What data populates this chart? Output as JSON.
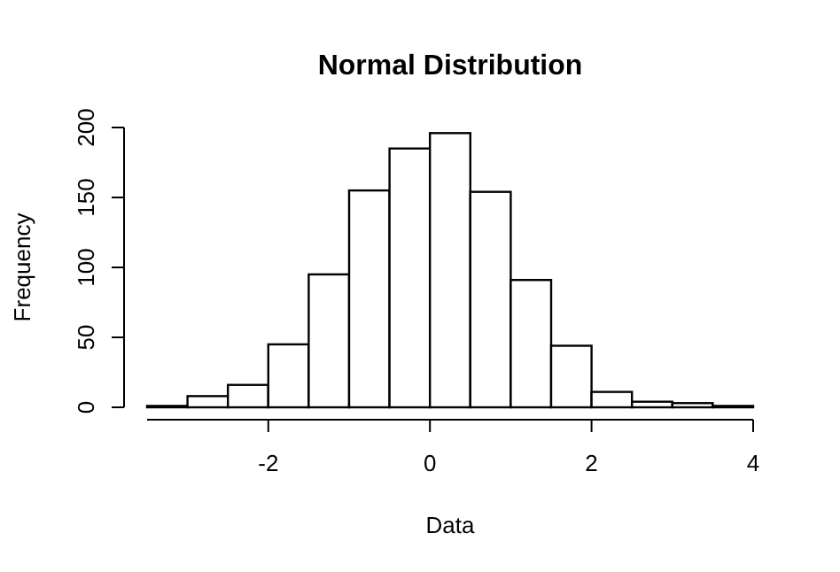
{
  "chart_data": {
    "type": "histogram",
    "title": "Normal Distribution",
    "xlabel": "Data",
    "ylabel": "Frequency",
    "bins": [
      -3.5,
      -3,
      -2.5,
      -2,
      -1.5,
      -1,
      -0.5,
      0,
      0.5,
      1,
      1.5,
      2,
      2.5,
      3,
      3.5,
      4
    ],
    "values": [
      1,
      8,
      16,
      45,
      95,
      155,
      185,
      196,
      154,
      91,
      44,
      11,
      4,
      3,
      1
    ],
    "color": "#ffffff",
    "xlim": [
      -3.5,
      4
    ],
    "ylim": [
      0,
      200
    ],
    "xticks": [
      -2,
      0,
      2,
      4
    ],
    "yticks": [
      0,
      50,
      100,
      150,
      200
    ],
    "grid": false
  }
}
